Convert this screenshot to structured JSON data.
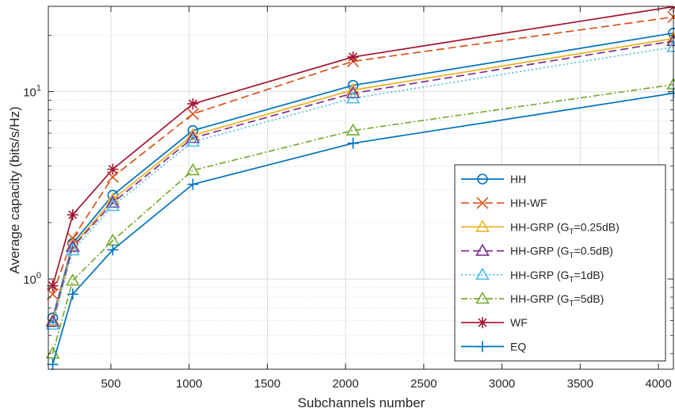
{
  "chart_data": {
    "type": "line",
    "xlabel": "Subchannels number",
    "ylabel": "Average capacity (bits/s/Hz)",
    "x": [
      128,
      256,
      512,
      1024,
      2048,
      4096
    ],
    "xlim": [
      100,
      4096
    ],
    "ylim": [
      0.33,
      28.5
    ],
    "yscale": "log",
    "grid": true,
    "legend_position": "bottom-right",
    "x_ticks": [
      500,
      1000,
      1500,
      2000,
      2500,
      3000,
      3500,
      4000
    ],
    "x_tick_labels": [
      "500",
      "1000",
      "1500",
      "2000",
      "2500",
      "3000",
      "3500",
      "4000"
    ],
    "y_major_ticks": [
      1,
      10
    ],
    "y_tick_labels": [
      {
        "base": "10",
        "exp": "0"
      },
      {
        "base": "10",
        "exp": "1"
      }
    ],
    "series": [
      {
        "name": "HH",
        "legend": {
          "pre": "HH"
        },
        "color": "#0072BD",
        "dash": "",
        "marker": "circle",
        "values": [
          0.62,
          1.55,
          2.8,
          6.2,
          10.8,
          20.5
        ]
      },
      {
        "name": "HH-WF",
        "legend": {
          "pre": "HH-WF"
        },
        "color": "#D95319",
        "dash": "10,5",
        "marker": "x",
        "values": [
          0.83,
          1.65,
          3.5,
          7.6,
          14.5,
          25.0
        ]
      },
      {
        "name": "HH-GRP (G_T=0.25dB)",
        "legend": {
          "pre": "HH-GRP (G",
          "sub": "T",
          "post": "=0.25dB)"
        },
        "color": "#EDB120",
        "dash": "",
        "marker": "triangle",
        "values": [
          0.6,
          1.5,
          2.65,
          5.85,
          10.2,
          19.2
        ]
      },
      {
        "name": "HH-GRP (G_T=0.5dB)",
        "legend": {
          "pre": "HH-GRP (G",
          "sub": "T",
          "post": "=0.5dB)"
        },
        "color": "#7E2F8E",
        "dash": "10,5",
        "marker": "triangle",
        "values": [
          0.59,
          1.48,
          2.55,
          5.65,
          9.8,
          18.6
        ]
      },
      {
        "name": "HH-GRP (G_T=1dB)",
        "legend": {
          "pre": "HH-GRP (G",
          "sub": "T",
          "post": "=1dB)"
        },
        "color": "#4DBEEE",
        "dash": "2,3",
        "marker": "triangle",
        "values": [
          0.57,
          1.42,
          2.45,
          5.4,
          9.2,
          17.3
        ]
      },
      {
        "name": "HH-GRP (G_T=5dB)",
        "legend": {
          "pre": "HH-GRP (G",
          "sub": "T",
          "post": "=5dB)"
        },
        "color": "#77AC30",
        "dash": "8,3,2,3",
        "marker": "triangle",
        "values": [
          0.4,
          0.98,
          1.6,
          3.8,
          6.2,
          10.9
        ]
      },
      {
        "name": "WF",
        "legend": {
          "pre": "WF"
        },
        "color": "#A2142F",
        "dash": "",
        "marker": "asterisk",
        "values": [
          0.92,
          2.2,
          3.85,
          8.6,
          15.3,
          28.4
        ]
      },
      {
        "name": "EQ",
        "legend": {
          "pre": "EQ"
        },
        "color": "#0072BD",
        "dash": "",
        "marker": "plus",
        "values": [
          0.35,
          0.83,
          1.43,
          3.2,
          5.3,
          9.8
        ]
      }
    ]
  }
}
